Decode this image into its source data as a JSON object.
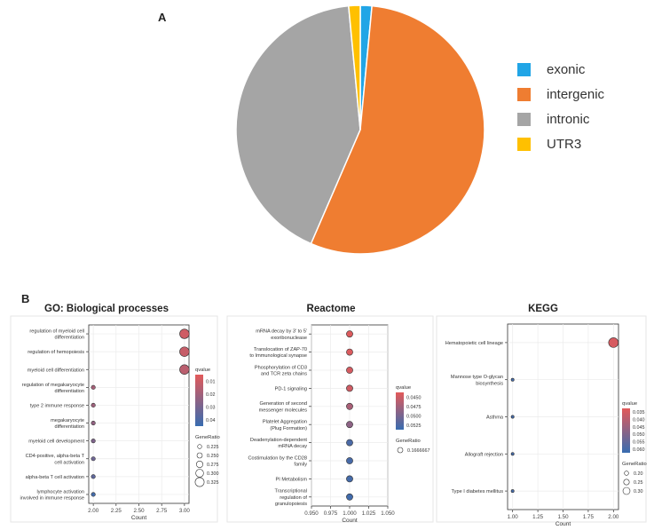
{
  "labels": {
    "a": "A",
    "b": "B"
  },
  "chart_data": [
    {
      "type": "pie",
      "categories": [
        "exonic",
        "intergenic",
        "intronic",
        "UTR3"
      ],
      "values": [
        1.5,
        55.0,
        42.0,
        1.5
      ],
      "colors": [
        "#21a5e6",
        "#ef7d31",
        "#a5a5a5",
        "#ffc000"
      ],
      "legend_position": "right"
    },
    {
      "type": "scatter",
      "title": "GO: Biological processes",
      "xlabel": "Count",
      "xlim": [
        1.95,
        3.05
      ],
      "xticks": [
        "2.00",
        "2.25",
        "2.50",
        "2.75",
        "3.00"
      ],
      "xtick_values": [
        2.0,
        2.25,
        2.5,
        2.75,
        3.0
      ],
      "terms": [
        "regulation of myeloid cell differentiation",
        "regulation of hemopoiesis",
        "myeloid cell differentiation",
        "regulation of megakaryocyte differentiation",
        "type 2 immune response",
        "megakaryocyte differentiation",
        "myeloid cell development",
        "CD4-positive, alpha-beta T cell activation",
        "alpha-beta T cell activation",
        "lymphocyte activation involved in immune response"
      ],
      "counts": [
        3,
        3,
        3,
        2,
        2,
        2,
        2,
        2,
        2,
        2
      ],
      "gene_ratio": [
        0.33,
        0.33,
        0.33,
        0.225,
        0.225,
        0.225,
        0.225,
        0.225,
        0.225,
        0.225
      ],
      "qvalue": [
        0.01,
        0.012,
        0.015,
        0.02,
        0.022,
        0.025,
        0.03,
        0.034,
        0.038,
        0.045
      ],
      "color_legend": {
        "title": "qvalue",
        "ticks": [
          "0.01",
          "0.02",
          "0.03",
          "0.04"
        ],
        "range": [
          0.005,
          0.048
        ]
      },
      "size_legend": {
        "title": "GeneRatio",
        "ticks": [
          "0.225",
          "0.250",
          "0.275",
          "0.300",
          "0.325"
        ]
      }
    },
    {
      "type": "scatter",
      "title": "Reactome",
      "xlabel": "Count",
      "xlim": [
        0.95,
        1.05
      ],
      "xticks": [
        "0.950",
        "0.975",
        "1.000",
        "1.025",
        "1.050"
      ],
      "xtick_values": [
        0.95,
        0.975,
        1.0,
        1.025,
        1.05
      ],
      "terms": [
        "mRNA decay by 3' to 5' exoribonuclease",
        "Translocation of ZAP-70 to Immunological synapse",
        "Phosphorylation of CD3 and TCR zeta chains",
        "PD-1 signaling",
        "Generation of second messenger molecules",
        "Platelet Aggregation (Plug Formation)",
        "Deadenylation-dependent mRNA decay",
        "Costimulation by the CD28 family",
        "PI Metabolism",
        "Transcriptional regulation of granulopoiesis"
      ],
      "counts": [
        1,
        1,
        1,
        1,
        1,
        1,
        1,
        1,
        1,
        1
      ],
      "gene_ratio": [
        0.1666667,
        0.1666667,
        0.1666667,
        0.1666667,
        0.1666667,
        0.1666667,
        0.1666667,
        0.1666667,
        0.1666667,
        0.1666667
      ],
      "qvalue": [
        0.0448,
        0.0449,
        0.0452,
        0.0455,
        0.0475,
        0.049,
        0.0525,
        0.0527,
        0.0528,
        0.053
      ],
      "color_legend": {
        "title": "qvalue",
        "ticks": [
          "0.0450",
          "0.0475",
          "0.0500",
          "0.0525"
        ],
        "range": [
          0.0445,
          0.0535
        ]
      },
      "size_legend": {
        "title": "GeneRatio",
        "ticks": [
          "0.1666667"
        ]
      }
    },
    {
      "type": "scatter",
      "title": "KEGG",
      "xlabel": "Count",
      "xlim": [
        0.95,
        2.05
      ],
      "xticks": [
        "1.00",
        "1.25",
        "1.50",
        "1.75",
        "2.00"
      ],
      "xtick_values": [
        1.0,
        1.25,
        1.5,
        1.75,
        2.0
      ],
      "terms": [
        "Hematopoietic cell lineage",
        "Mannose type O-glycan biosynthesis",
        "Asthma",
        "Allograft rejection",
        "Type I diabetes mellitus"
      ],
      "counts": [
        2,
        1,
        1,
        1,
        1
      ],
      "gene_ratio": [
        0.33,
        0.17,
        0.17,
        0.17,
        0.17
      ],
      "qvalue": [
        0.035,
        0.06,
        0.06,
        0.06,
        0.06
      ],
      "color_legend": {
        "title": "qvalue",
        "ticks": [
          "0.035",
          "0.040",
          "0.045",
          "0.050",
          "0.055",
          "0.060"
        ],
        "range": [
          0.033,
          0.062
        ]
      },
      "size_legend": {
        "title": "GeneRatio",
        "ticks": [
          "0.20",
          "0.25",
          "0.30"
        ]
      }
    }
  ]
}
